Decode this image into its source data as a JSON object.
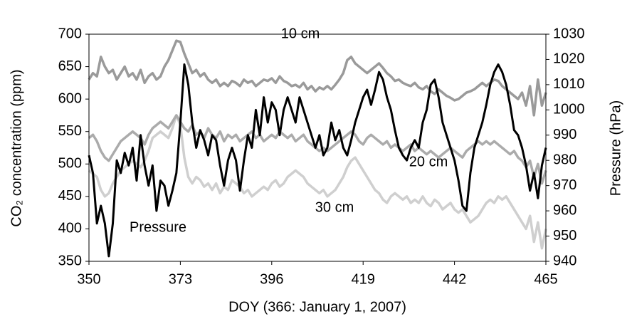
{
  "chart_data": {
    "type": "line",
    "x_label": "DOY (366: January 1, 2007)",
    "y_label": "CO₂ concentration (ppm)",
    "y2_label": "Pressure (hPa)",
    "xlim": [
      350,
      465
    ],
    "xticks": [
      350,
      373,
      396,
      419,
      442,
      465
    ],
    "ylim": [
      350,
      700
    ],
    "yticks": [
      350,
      400,
      450,
      500,
      550,
      600,
      650,
      700
    ],
    "y2lim": [
      940,
      1030
    ],
    "y2ticks": [
      940,
      950,
      960,
      970,
      980,
      990,
      1000,
      1010,
      1020,
      1030
    ],
    "x": [
      350,
      351,
      352,
      353,
      354,
      355,
      356,
      357,
      358,
      359,
      360,
      361,
      362,
      363,
      364,
      365,
      366,
      367,
      368,
      369,
      370,
      371,
      372,
      373,
      374,
      375,
      376,
      377,
      378,
      379,
      380,
      381,
      382,
      383,
      384,
      385,
      386,
      387,
      388,
      389,
      390,
      391,
      392,
      393,
      394,
      395,
      396,
      397,
      398,
      399,
      400,
      401,
      402,
      403,
      404,
      405,
      406,
      407,
      408,
      409,
      410,
      411,
      412,
      413,
      414,
      415,
      416,
      417,
      418,
      419,
      420,
      421,
      422,
      423,
      424,
      425,
      426,
      427,
      428,
      429,
      430,
      431,
      432,
      433,
      434,
      435,
      436,
      437,
      438,
      439,
      440,
      441,
      442,
      443,
      444,
      445,
      446,
      447,
      448,
      449,
      450,
      451,
      452,
      453,
      454,
      455,
      456,
      457,
      458,
      459,
      460,
      461,
      462,
      463,
      464,
      465
    ],
    "series": [
      {
        "name": "10 cm",
        "color": "#9a9a9a",
        "values": [
          630,
          640,
          635,
          665,
          650,
          640,
          645,
          630,
          640,
          650,
          635,
          640,
          630,
          645,
          625,
          635,
          640,
          630,
          635,
          650,
          660,
          675,
          690,
          688,
          670,
          655,
          640,
          645,
          635,
          640,
          630,
          625,
          630,
          620,
          625,
          620,
          628,
          625,
          620,
          630,
          625,
          628,
          620,
          625,
          630,
          628,
          632,
          625,
          635,
          628,
          625,
          620,
          622,
          618,
          625,
          615,
          620,
          612,
          618,
          615,
          620,
          615,
          622,
          630,
          640,
          660,
          665,
          655,
          650,
          645,
          640,
          645,
          650,
          655,
          648,
          640,
          635,
          628,
          630,
          625,
          622,
          620,
          625,
          618,
          615,
          620,
          612,
          608,
          615,
          610,
          605,
          602,
          598,
          600,
          605,
          610,
          612,
          615,
          620,
          625,
          620,
          625,
          630,
          628,
          620,
          615,
          610,
          605,
          600,
          610,
          590,
          620,
          575,
          630,
          590,
          610
        ]
      },
      {
        "name": "20 cm",
        "color": "#ababab",
        "values": [
          540,
          545,
          535,
          520,
          510,
          505,
          515,
          525,
          535,
          540,
          545,
          550,
          545,
          540,
          530,
          545,
          555,
          560,
          565,
          560,
          555,
          565,
          575,
          565,
          555,
          550,
          560,
          545,
          550,
          540,
          555,
          545,
          540,
          550,
          535,
          545,
          540,
          545,
          535,
          540,
          545,
          550,
          540,
          545,
          535,
          540,
          545,
          540,
          550,
          545,
          540,
          545,
          535,
          540,
          545,
          535,
          530,
          525,
          520,
          525,
          520,
          525,
          530,
          535,
          540,
          545,
          550,
          545,
          535,
          530,
          540,
          545,
          540,
          535,
          530,
          535,
          525,
          530,
          525,
          520,
          525,
          530,
          520,
          525,
          520,
          515,
          520,
          515,
          510,
          515,
          520,
          525,
          520,
          515,
          510,
          520,
          525,
          530,
          535,
          530,
          535,
          530,
          535,
          530,
          525,
          520,
          515,
          520,
          510,
          505,
          495,
          505,
          480,
          500,
          470,
          490
        ]
      },
      {
        "name": "30 cm",
        "color": "#cfcfcf",
        "values": [
          490,
          485,
          480,
          460,
          450,
          455,
          470,
          480,
          490,
          495,
          500,
          505,
          500,
          495,
          505,
          520,
          540,
          545,
          550,
          545,
          540,
          555,
          575,
          560,
          510,
          480,
          470,
          480,
          475,
          465,
          470,
          460,
          470,
          455,
          465,
          460,
          475,
          470,
          465,
          455,
          460,
          450,
          455,
          460,
          465,
          460,
          470,
          475,
          465,
          470,
          480,
          485,
          490,
          485,
          480,
          470,
          465,
          460,
          455,
          460,
          450,
          455,
          460,
          470,
          480,
          495,
          505,
          510,
          500,
          490,
          480,
          470,
          460,
          455,
          445,
          440,
          450,
          455,
          450,
          445,
          450,
          440,
          445,
          440,
          450,
          440,
          435,
          445,
          440,
          430,
          435,
          440,
          430,
          425,
          430,
          420,
          410,
          415,
          420,
          430,
          440,
          445,
          440,
          450,
          445,
          450,
          440,
          430,
          420,
          410,
          400,
          420,
          380,
          410,
          370,
          400
        ]
      },
      {
        "name": "Pressure",
        "color": "#000000",
        "axis": "y2",
        "values": [
          982,
          975,
          955,
          962,
          955,
          942,
          955,
          980,
          975,
          983,
          978,
          985,
          972,
          990,
          978,
          970,
          978,
          960,
          972,
          970,
          962,
          968,
          975,
          995,
          1018,
          1010,
          995,
          985,
          992,
          988,
          982,
          990,
          988,
          978,
          970,
          980,
          985,
          980,
          968,
          980,
          990,
          985,
          1000,
          990,
          1005,
          995,
          1003,
          1000,
          990,
          1000,
          1005,
          1000,
          995,
          1005,
          1000,
          995,
          990,
          985,
          990,
          982,
          985,
          995,
          988,
          992,
          985,
          982,
          988,
          995,
          1000,
          1005,
          1008,
          1002,
          1008,
          1015,
          1012,
          1005,
          1000,
          992,
          985,
          982,
          980,
          985,
          988,
          985,
          995,
          1000,
          1010,
          1012,
          1005,
          995,
          990,
          985,
          980,
          972,
          962,
          960,
          975,
          985,
          990,
          995,
          1002,
          1010,
          1015,
          1018,
          1015,
          1010,
          1002,
          992,
          990,
          985,
          978,
          968,
          975,
          965,
          978,
          985
        ]
      }
    ]
  }
}
